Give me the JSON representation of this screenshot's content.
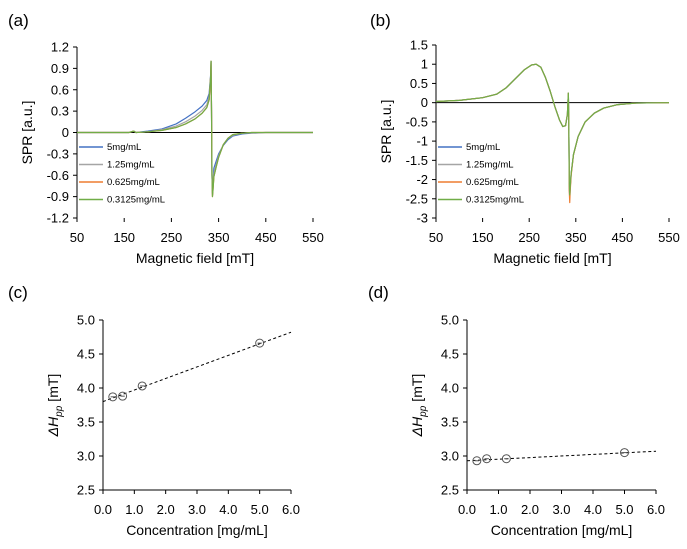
{
  "figure": {
    "background": "#ffffff",
    "colors": {
      "s5": "#4472c4",
      "s125": "#a5a5a5",
      "s0625": "#ed7d31",
      "s03125": "#70ad47",
      "axis": "#000000",
      "fit": "#000000"
    }
  },
  "chart_data": [
    {
      "id": "a",
      "panel_label": "(a)",
      "type": "line",
      "xlabel": "Magnetic field [mT]",
      "ylabel": "SPR [a.u.]",
      "xlim": [
        50,
        550
      ],
      "ylim": [
        -1.2,
        1.2
      ],
      "xticks": [
        50,
        150,
        250,
        350,
        450,
        550
      ],
      "yticks": [
        -1.2,
        -0.9,
        -0.6,
        -0.3,
        0,
        0.3,
        0.6,
        0.9,
        1.2
      ],
      "ytick_labels": [
        "-1.2",
        "-0.9",
        "-0.6",
        "-0.3",
        "0",
        "0.3",
        "0.6",
        "0.9",
        "1.2"
      ],
      "legend_position": "lower-left",
      "series": [
        {
          "name": "5mg/mL",
          "color_key": "s5",
          "x": [
            50,
            160,
            165,
            170,
            175,
            200,
            230,
            260,
            280,
            300,
            315,
            325,
            330,
            333,
            334,
            335,
            336,
            337,
            338,
            340,
            345,
            350,
            360,
            370,
            380,
            400,
            420,
            450,
            500,
            550
          ],
          "y": [
            0,
            0,
            0.01,
            0.02,
            0,
            0.02,
            0.05,
            0.12,
            0.2,
            0.29,
            0.37,
            0.45,
            0.55,
            0.8,
            1.0,
            0.3,
            -0.6,
            -0.86,
            -0.75,
            -0.5,
            -0.4,
            -0.3,
            -0.18,
            -0.1,
            -0.05,
            -0.02,
            -0.01,
            0,
            0,
            0
          ]
        },
        {
          "name": "1.25mg/mL",
          "color_key": "s125",
          "x": [
            50,
            160,
            165,
            170,
            175,
            200,
            230,
            260,
            280,
            300,
            315,
            325,
            330,
            333,
            334,
            335,
            336,
            337,
            338,
            340,
            345,
            350,
            360,
            370,
            380,
            400,
            420,
            450,
            500,
            550
          ],
          "y": [
            0,
            0,
            0.01,
            0.02,
            0,
            0.01,
            0.04,
            0.09,
            0.15,
            0.23,
            0.31,
            0.39,
            0.5,
            0.78,
            1.0,
            0.3,
            -0.6,
            -0.88,
            -0.8,
            -0.58,
            -0.45,
            -0.33,
            -0.17,
            -0.08,
            -0.04,
            -0.01,
            -0.005,
            0,
            0,
            0
          ]
        },
        {
          "name": "0.625mg/mL",
          "color_key": "s0625",
          "x": [
            50,
            160,
            165,
            170,
            175,
            200,
            230,
            260,
            280,
            300,
            315,
            325,
            330,
            333,
            334,
            335,
            336,
            337,
            338,
            340,
            345,
            350,
            360,
            370,
            380,
            400,
            420,
            450,
            500,
            550
          ],
          "y": [
            0,
            0,
            0.01,
            0.02,
            0,
            0.01,
            0.03,
            0.07,
            0.12,
            0.19,
            0.27,
            0.35,
            0.46,
            0.77,
            1.0,
            0.3,
            -0.6,
            -0.9,
            -0.82,
            -0.62,
            -0.48,
            -0.35,
            -0.17,
            -0.08,
            -0.03,
            -0.01,
            0,
            0,
            0,
            0
          ]
        },
        {
          "name": "0.3125mg/mL",
          "color_key": "s03125",
          "x": [
            50,
            160,
            165,
            170,
            175,
            200,
            230,
            260,
            280,
            300,
            315,
            325,
            330,
            333,
            334,
            335,
            336,
            337,
            338,
            340,
            345,
            350,
            360,
            370,
            380,
            400,
            420,
            450,
            500,
            550
          ],
          "y": [
            0,
            0,
            0.01,
            0.02,
            0,
            0.01,
            0.03,
            0.07,
            0.12,
            0.19,
            0.27,
            0.35,
            0.46,
            0.77,
            1.0,
            0.3,
            -0.6,
            -0.9,
            -0.82,
            -0.62,
            -0.48,
            -0.35,
            -0.17,
            -0.08,
            -0.03,
            -0.01,
            0,
            0,
            0,
            0
          ]
        }
      ]
    },
    {
      "id": "b",
      "panel_label": "(b)",
      "type": "line",
      "xlabel": "Magnetic field [mT]",
      "ylabel": "SPR [a.u.]",
      "xlim": [
        50,
        550
      ],
      "ylim": [
        -3,
        1.5
      ],
      "xticks": [
        50,
        150,
        250,
        350,
        450,
        550
      ],
      "yticks": [
        -3,
        -2.5,
        -2,
        -1.5,
        -1,
        -0.5,
        0,
        0.5,
        1,
        1.5
      ],
      "ytick_labels": [
        "-3",
        "-2.5",
        "-2",
        "-1.5",
        "-1",
        "-0.5",
        "0",
        "0.5",
        "1",
        "1.5"
      ],
      "legend_position": "lower-left",
      "series": [
        {
          "name": "5mg/mL",
          "color_key": "s5",
          "x": [
            50,
            100,
            150,
            180,
            200,
            220,
            240,
            255,
            265,
            275,
            285,
            295,
            305,
            315,
            322,
            328,
            332,
            334,
            335,
            336,
            337,
            338,
            340,
            345,
            355,
            370,
            390,
            410,
            440,
            480,
            550
          ],
          "y": [
            0.03,
            0.06,
            0.13,
            0.22,
            0.38,
            0.62,
            0.86,
            0.98,
            1.0,
            0.92,
            0.65,
            0.3,
            -0.1,
            -0.45,
            -0.62,
            -0.6,
            -0.3,
            0.25,
            -0.5,
            -2.2,
            -2.45,
            -2.2,
            -1.85,
            -1.35,
            -0.88,
            -0.5,
            -0.27,
            -0.14,
            -0.05,
            -0.01,
            0
          ]
        },
        {
          "name": "1.25mg/mL",
          "color_key": "s125",
          "x": [
            50,
            100,
            150,
            180,
            200,
            220,
            240,
            255,
            265,
            275,
            285,
            295,
            305,
            315,
            322,
            328,
            332,
            334,
            335,
            336,
            337,
            338,
            340,
            345,
            355,
            370,
            390,
            410,
            440,
            480,
            550
          ],
          "y": [
            0.03,
            0.06,
            0.13,
            0.22,
            0.38,
            0.62,
            0.86,
            0.98,
            1.0,
            0.92,
            0.65,
            0.3,
            -0.1,
            -0.45,
            -0.62,
            -0.6,
            -0.3,
            0.25,
            -0.5,
            -2.2,
            -2.5,
            -2.22,
            -1.86,
            -1.35,
            -0.88,
            -0.5,
            -0.27,
            -0.14,
            -0.05,
            -0.01,
            0
          ]
        },
        {
          "name": "0.625mg/mL",
          "color_key": "s0625",
          "x": [
            50,
            100,
            150,
            180,
            200,
            220,
            240,
            255,
            265,
            275,
            285,
            295,
            305,
            315,
            322,
            328,
            332,
            334,
            335,
            336,
            337,
            338,
            340,
            345,
            355,
            370,
            390,
            410,
            440,
            480,
            550
          ],
          "y": [
            0.03,
            0.06,
            0.13,
            0.22,
            0.38,
            0.62,
            0.86,
            0.98,
            1.0,
            0.92,
            0.65,
            0.3,
            -0.1,
            -0.45,
            -0.62,
            -0.6,
            -0.3,
            0.25,
            -0.5,
            -2.3,
            -2.6,
            -2.3,
            -1.9,
            -1.36,
            -0.88,
            -0.5,
            -0.27,
            -0.14,
            -0.05,
            -0.01,
            0
          ]
        },
        {
          "name": "0.3125mg/mL",
          "color_key": "s03125",
          "x": [
            50,
            100,
            150,
            180,
            200,
            220,
            240,
            255,
            265,
            275,
            285,
            295,
            305,
            315,
            322,
            328,
            332,
            334,
            335,
            336,
            337,
            338,
            340,
            345,
            355,
            370,
            390,
            410,
            440,
            480,
            550
          ],
          "y": [
            0.03,
            0.06,
            0.13,
            0.22,
            0.38,
            0.62,
            0.86,
            0.98,
            1.0,
            0.92,
            0.65,
            0.3,
            -0.1,
            -0.45,
            -0.62,
            -0.6,
            -0.3,
            0.25,
            -0.5,
            -2.1,
            -2.4,
            -2.18,
            -1.84,
            -1.35,
            -0.88,
            -0.5,
            -0.27,
            -0.14,
            -0.05,
            -0.01,
            0
          ]
        }
      ]
    },
    {
      "id": "c",
      "panel_label": "(c)",
      "type": "scatter",
      "xlabel": "Concentration [mg/mL]",
      "ylabel_main": "ΔH",
      "ylabel_sub": "pp",
      "ylabel_unit": "[mT]",
      "xlim": [
        0,
        6
      ],
      "ylim": [
        2.5,
        5.0
      ],
      "xticks": [
        0,
        1,
        2,
        3,
        4,
        5,
        6
      ],
      "xtick_labels": [
        "0.0",
        "1.0",
        "2.0",
        "3.0",
        "4.0",
        "5.0",
        "6.0"
      ],
      "yticks": [
        2.5,
        3.0,
        3.5,
        4.0,
        4.5,
        5.0
      ],
      "ytick_labels": [
        "2.5",
        "3.0",
        "3.5",
        "4.0",
        "4.5",
        "5.0"
      ],
      "points": {
        "x": [
          0.3125,
          0.625,
          1.25,
          5.0
        ],
        "y": [
          3.87,
          3.88,
          4.03,
          4.66
        ]
      },
      "fit": {
        "x": [
          0,
          6
        ],
        "y": [
          3.8,
          4.82
        ]
      }
    },
    {
      "id": "d",
      "panel_label": "(d)",
      "type": "scatter",
      "xlabel": "Concentration [mg/mL]",
      "ylabel_main": "ΔH",
      "ylabel_sub": "pp",
      "ylabel_unit": "[mT]",
      "xlim": [
        0,
        6
      ],
      "ylim": [
        2.5,
        5.0
      ],
      "xticks": [
        0,
        1,
        2,
        3,
        4,
        5,
        6
      ],
      "xtick_labels": [
        "0.0",
        "1.0",
        "2.0",
        "3.0",
        "4.0",
        "5.0",
        "6.0"
      ],
      "yticks": [
        2.5,
        3.0,
        3.5,
        4.0,
        4.5,
        5.0
      ],
      "ytick_labels": [
        "2.5",
        "3.0",
        "3.5",
        "4.0",
        "4.5",
        "5.0"
      ],
      "points": {
        "x": [
          0.3125,
          0.625,
          1.25,
          5.0
        ],
        "y": [
          2.93,
          2.96,
          2.96,
          3.05
        ]
      },
      "fit": {
        "x": [
          0,
          6
        ],
        "y": [
          2.93,
          3.07
        ]
      }
    }
  ]
}
